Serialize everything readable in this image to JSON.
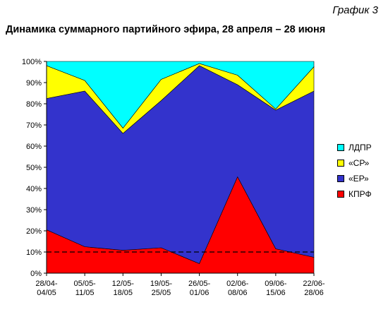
{
  "figure_label": "График 3",
  "chart_data": {
    "type": "area",
    "stacked": true,
    "title": "Динамика суммарного партийного эфира, 28 апреля – 28 июня",
    "categories": [
      [
        "28/04-",
        "04/05"
      ],
      [
        "05/05-",
        "11/05"
      ],
      [
        "12/05-",
        "18/05"
      ],
      [
        "19/05-",
        "25/05"
      ],
      [
        "26/05-",
        "01/06"
      ],
      [
        "02/06-",
        "08/06"
      ],
      [
        "09/06-",
        "15/06"
      ],
      [
        "22/06-",
        "28/06"
      ]
    ],
    "series": [
      {
        "name": "КПРФ",
        "color": "#ff0000",
        "values": [
          20.5,
          12.5,
          10.8,
          12.0,
          4.5,
          45.5,
          11.5,
          7.5
        ]
      },
      {
        "name": "«ЕР»",
        "color": "#3333cc",
        "values": [
          62.0,
          73.5,
          55.2,
          69.5,
          93.5,
          43.5,
          65.5,
          78.5
        ]
      },
      {
        "name": "«СР»",
        "color": "#ffff00",
        "values": [
          15.5,
          5.0,
          2.5,
          10.0,
          1.0,
          4.5,
          0.5,
          11.5
        ]
      },
      {
        "name": "ЛДПР",
        "color": "#00ffff",
        "values": [
          2.0,
          9.0,
          31.5,
          8.5,
          1.0,
          6.5,
          22.5,
          2.5
        ]
      }
    ],
    "legend_order": [
      "ЛДПР",
      "«СР»",
      "«ЕР»",
      "КПРФ"
    ],
    "y_ticks": [
      "0%",
      "10%",
      "20%",
      "30%",
      "40%",
      "50%",
      "60%",
      "70%",
      "80%",
      "90%",
      "100%"
    ],
    "ylim": [
      0,
      100
    ],
    "reference_line": {
      "value": 10,
      "style": "dashed"
    },
    "grid": false,
    "legend_position": "right"
  }
}
